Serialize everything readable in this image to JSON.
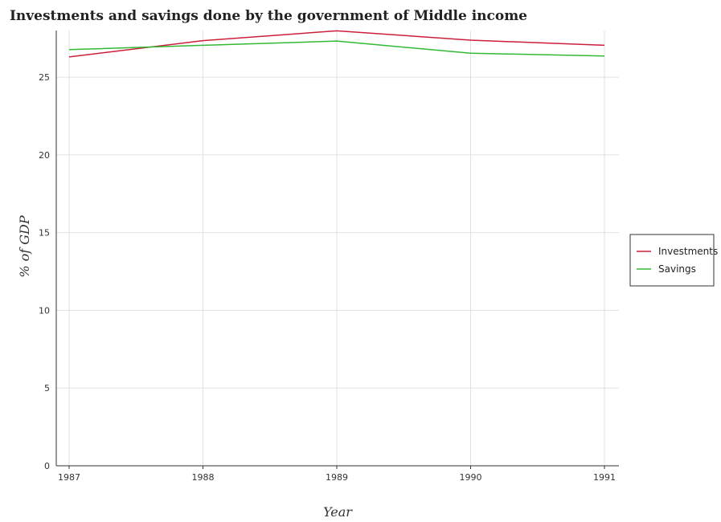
{
  "chart_data": {
    "type": "line",
    "title": "Investments and savings done by the government of Middle income",
    "xlabel": "Year",
    "ylabel": "% of GDP",
    "categories": [
      "1987",
      "1988",
      "1989",
      "1990",
      "1991"
    ],
    "ylim": [
      0,
      28
    ],
    "yticks": [
      0,
      5,
      10,
      15,
      20,
      25
    ],
    "grid": true,
    "legend_position": "right",
    "series": [
      {
        "name": "Investments",
        "color": "#cc1f3a",
        "values": [
          26.3,
          27.35,
          27.98,
          27.38,
          27.05
        ]
      },
      {
        "name": "Savings",
        "color": "#33b833",
        "values": [
          26.77,
          27.05,
          27.32,
          26.54,
          26.36
        ]
      }
    ]
  }
}
